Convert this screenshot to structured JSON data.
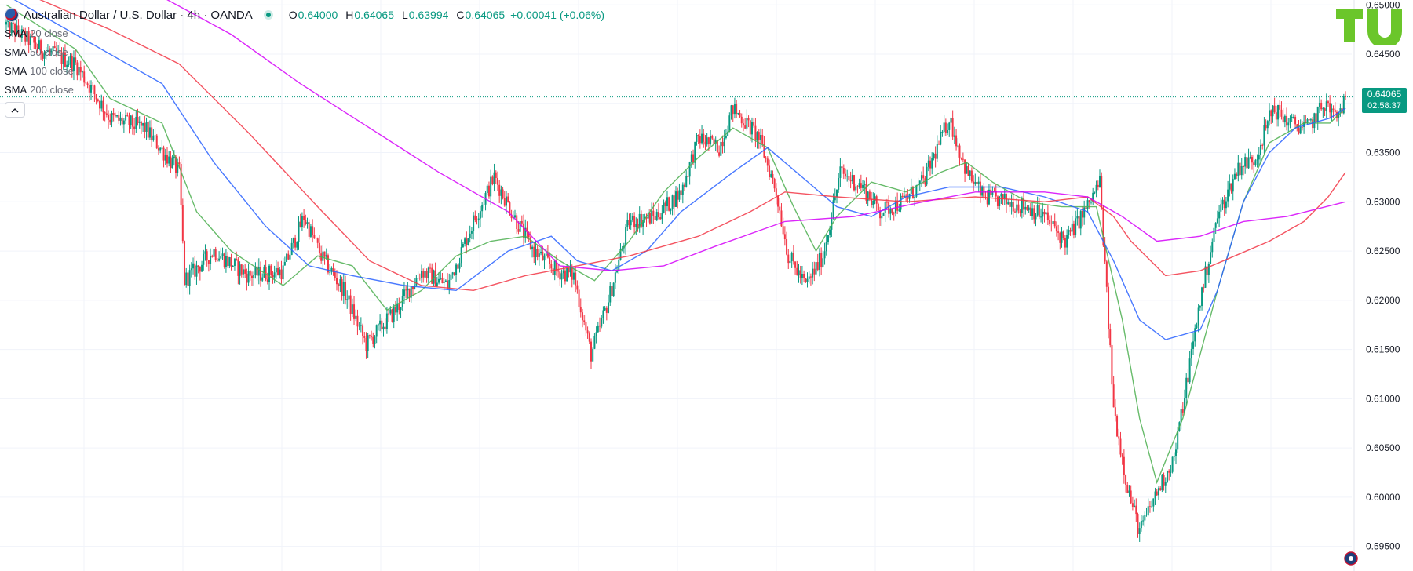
{
  "header": {
    "symbol_title": "Australian Dollar / U.S. Dollar · 4h · OANDA",
    "open_label": "O",
    "open": "0.64000",
    "high_label": "H",
    "high": "0.64065",
    "low_label": "L",
    "low": "0.63994",
    "close_label": "C",
    "close": "0.64065",
    "change": "+0.00041 (+0.06%)"
  },
  "indicators": [
    {
      "name": "SMA",
      "param": "20 close",
      "color": "#4caf50"
    },
    {
      "name": "SMA",
      "param": "50 close",
      "color": "#2962ff"
    },
    {
      "name": "SMA",
      "param": "100 close",
      "color": "#f23645"
    },
    {
      "name": "SMA",
      "param": "200 close",
      "color": "#d500f9"
    }
  ],
  "collapse_icon": "chevron-up-icon",
  "price_label": {
    "value": "0.64065",
    "countdown": "02:58:37"
  },
  "colors": {
    "up": "#089981",
    "down": "#f23645",
    "grid": "#f0f3fa",
    "axis_text": "#131722",
    "last_price_line": "#089981"
  },
  "chart_data": {
    "type": "candlestick",
    "title": "Australian Dollar / U.S. Dollar · 4h · OANDA",
    "ylim": [
      0.5925,
      0.6505
    ],
    "yticks": [
      "0.65000",
      "0.64500",
      "0.64000",
      "0.63500",
      "0.63000",
      "0.62500",
      "0.62000",
      "0.61500",
      "0.61000",
      "0.60500",
      "0.60000",
      "0.59500"
    ],
    "last_price": 0.64065,
    "price_path": [
      [
        0,
        0.648
      ],
      [
        20,
        0.6455
      ],
      [
        40,
        0.644
      ],
      [
        60,
        0.6385
      ],
      [
        80,
        0.6375
      ],
      [
        100,
        0.633
      ],
      [
        103,
        0.622
      ],
      [
        120,
        0.625
      ],
      [
        140,
        0.6225
      ],
      [
        160,
        0.623
      ],
      [
        172,
        0.6285
      ],
      [
        182,
        0.6245
      ],
      [
        195,
        0.621
      ],
      [
        208,
        0.6155
      ],
      [
        225,
        0.619
      ],
      [
        240,
        0.623
      ],
      [
        255,
        0.6215
      ],
      [
        270,
        0.628
      ],
      [
        282,
        0.6325
      ],
      [
        295,
        0.628
      ],
      [
        305,
        0.625
      ],
      [
        318,
        0.623
      ],
      [
        328,
        0.6225
      ],
      [
        338,
        0.6145
      ],
      [
        348,
        0.62
      ],
      [
        360,
        0.628
      ],
      [
        375,
        0.6285
      ],
      [
        390,
        0.631
      ],
      [
        400,
        0.6365
      ],
      [
        412,
        0.6355
      ],
      [
        420,
        0.6395
      ],
      [
        435,
        0.6365
      ],
      [
        445,
        0.631
      ],
      [
        452,
        0.6245
      ],
      [
        462,
        0.6215
      ],
      [
        472,
        0.6245
      ],
      [
        482,
        0.633
      ],
      [
        495,
        0.6315
      ],
      [
        505,
        0.629
      ],
      [
        518,
        0.63
      ],
      [
        530,
        0.632
      ],
      [
        545,
        0.6385
      ],
      [
        555,
        0.633
      ],
      [
        565,
        0.6305
      ],
      [
        578,
        0.63
      ],
      [
        590,
        0.6295
      ],
      [
        600,
        0.6285
      ],
      [
        612,
        0.626
      ],
      [
        625,
        0.6295
      ],
      [
        632,
        0.632
      ],
      [
        640,
        0.609
      ],
      [
        648,
        0.601
      ],
      [
        655,
        0.5965
      ],
      [
        665,
        0.6005
      ],
      [
        675,
        0.604
      ],
      [
        690,
        0.62
      ],
      [
        700,
        0.6285
      ],
      [
        712,
        0.6335
      ],
      [
        722,
        0.6345
      ],
      [
        732,
        0.6395
      ],
      [
        742,
        0.638
      ],
      [
        752,
        0.6375
      ],
      [
        762,
        0.64
      ],
      [
        769,
        0.6385
      ],
      [
        774,
        0.6406
      ]
    ],
    "series": [
      {
        "name": "SMA 20 close",
        "color": "#4caf50",
        "points": [
          [
            0,
            0.65
          ],
          [
            40,
            0.6455
          ],
          [
            60,
            0.6405
          ],
          [
            90,
            0.638
          ],
          [
            110,
            0.629
          ],
          [
            130,
            0.625
          ],
          [
            160,
            0.6215
          ],
          [
            180,
            0.6245
          ],
          [
            200,
            0.6235
          ],
          [
            220,
            0.619
          ],
          [
            240,
            0.621
          ],
          [
            260,
            0.6245
          ],
          [
            280,
            0.626
          ],
          [
            300,
            0.6265
          ],
          [
            320,
            0.624
          ],
          [
            340,
            0.622
          ],
          [
            360,
            0.626
          ],
          [
            380,
            0.631
          ],
          [
            400,
            0.6345
          ],
          [
            420,
            0.6375
          ],
          [
            440,
            0.6355
          ],
          [
            455,
            0.6295
          ],
          [
            468,
            0.625
          ],
          [
            480,
            0.6285
          ],
          [
            500,
            0.632
          ],
          [
            520,
            0.631
          ],
          [
            540,
            0.633
          ],
          [
            555,
            0.634
          ],
          [
            570,
            0.632
          ],
          [
            590,
            0.63
          ],
          [
            610,
            0.6295
          ],
          [
            630,
            0.6295
          ],
          [
            645,
            0.618
          ],
          [
            655,
            0.608
          ],
          [
            665,
            0.6015
          ],
          [
            680,
            0.608
          ],
          [
            700,
            0.621
          ],
          [
            715,
            0.63
          ],
          [
            730,
            0.636
          ],
          [
            750,
            0.638
          ],
          [
            765,
            0.638
          ],
          [
            774,
            0.6395
          ]
        ]
      },
      {
        "name": "SMA 50 close",
        "color": "#2962ff",
        "points": [
          [
            0,
            0.651
          ],
          [
            50,
            0.646
          ],
          [
            90,
            0.642
          ],
          [
            120,
            0.634
          ],
          [
            150,
            0.6275
          ],
          [
            175,
            0.6235
          ],
          [
            200,
            0.6225
          ],
          [
            230,
            0.6215
          ],
          [
            260,
            0.621
          ],
          [
            290,
            0.625
          ],
          [
            315,
            0.6265
          ],
          [
            330,
            0.624
          ],
          [
            350,
            0.623
          ],
          [
            370,
            0.625
          ],
          [
            390,
            0.629
          ],
          [
            420,
            0.633
          ],
          [
            440,
            0.6355
          ],
          [
            460,
            0.6325
          ],
          [
            480,
            0.6295
          ],
          [
            500,
            0.6285
          ],
          [
            520,
            0.6305
          ],
          [
            545,
            0.6315
          ],
          [
            575,
            0.6315
          ],
          [
            600,
            0.6305
          ],
          [
            625,
            0.629
          ],
          [
            640,
            0.624
          ],
          [
            655,
            0.618
          ],
          [
            670,
            0.616
          ],
          [
            690,
            0.617
          ],
          [
            700,
            0.621
          ],
          [
            715,
            0.63
          ],
          [
            730,
            0.635
          ],
          [
            745,
            0.6375
          ],
          [
            765,
            0.6385
          ],
          [
            774,
            0.6395
          ]
        ]
      },
      {
        "name": "SMA 100 close",
        "color": "#f23645",
        "points": [
          [
            0,
            0.652
          ],
          [
            60,
            0.6475
          ],
          [
            100,
            0.644
          ],
          [
            140,
            0.637
          ],
          [
            180,
            0.6295
          ],
          [
            210,
            0.624
          ],
          [
            240,
            0.6215
          ],
          [
            270,
            0.621
          ],
          [
            300,
            0.6225
          ],
          [
            330,
            0.6235
          ],
          [
            360,
            0.6245
          ],
          [
            400,
            0.6265
          ],
          [
            430,
            0.629
          ],
          [
            450,
            0.631
          ],
          [
            480,
            0.6305
          ],
          [
            520,
            0.63
          ],
          [
            560,
            0.6305
          ],
          [
            600,
            0.63
          ],
          [
            625,
            0.6305
          ],
          [
            640,
            0.6285
          ],
          [
            650,
            0.626
          ],
          [
            670,
            0.6225
          ],
          [
            690,
            0.623
          ],
          [
            710,
            0.6245
          ],
          [
            730,
            0.626
          ],
          [
            750,
            0.628
          ],
          [
            764,
            0.6305
          ],
          [
            774,
            0.633
          ]
        ]
      },
      {
        "name": "SMA 200 close",
        "color": "#d500f9",
        "points": [
          [
            88,
            0.651
          ],
          [
            130,
            0.647
          ],
          [
            170,
            0.642
          ],
          [
            210,
            0.6375
          ],
          [
            250,
            0.633
          ],
          [
            290,
            0.629
          ],
          [
            320,
            0.6235
          ],
          [
            350,
            0.623
          ],
          [
            380,
            0.6235
          ],
          [
            410,
            0.6255
          ],
          [
            450,
            0.628
          ],
          [
            490,
            0.6285
          ],
          [
            530,
            0.63
          ],
          [
            560,
            0.631
          ],
          [
            600,
            0.631
          ],
          [
            625,
            0.6305
          ],
          [
            645,
            0.6285
          ],
          [
            665,
            0.626
          ],
          [
            690,
            0.6265
          ],
          [
            715,
            0.628
          ],
          [
            740,
            0.6285
          ],
          [
            774,
            0.63
          ]
        ]
      }
    ]
  }
}
